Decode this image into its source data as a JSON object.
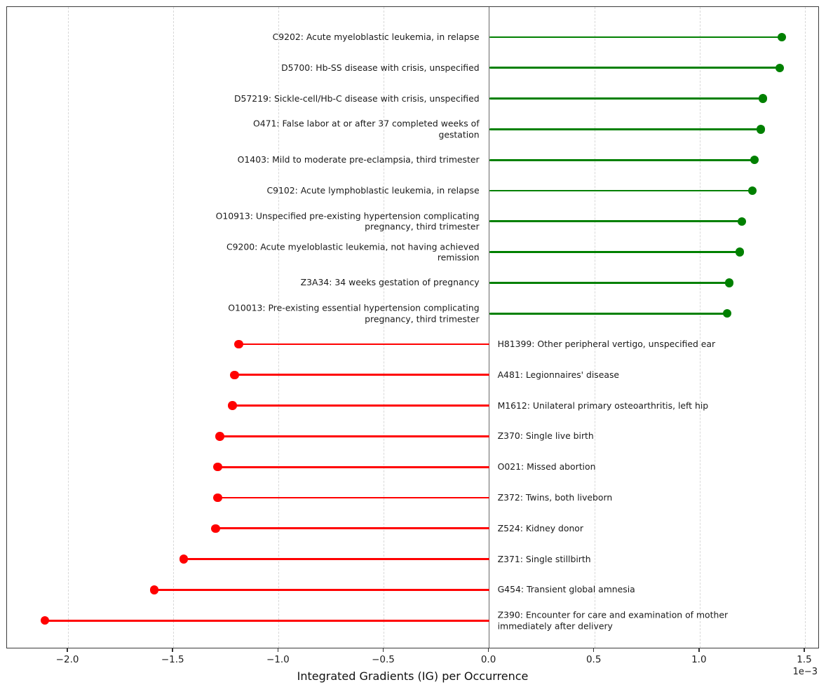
{
  "chart_data": {
    "type": "bar",
    "style": "horizontal-lollipop-stem",
    "title": "",
    "xlabel": "Integrated Gradients (IG) per Occurrence",
    "ylabel": "",
    "x_scale_factor": "1e−3",
    "values_unit": "×1e−3",
    "xlim": [
      -2.29,
      1.57
    ],
    "x_ticks": [
      -2.0,
      -1.5,
      -1.0,
      -0.5,
      0.0,
      0.5,
      1.0,
      1.5
    ],
    "x_tick_labels": [
      "−2.0",
      "−1.5",
      "−1.0",
      "−0.5",
      "0.0",
      "0.5",
      "1.0",
      "1.5"
    ],
    "grid": "vertical-dashed",
    "legend": "none",
    "positive_color": "#008000",
    "negative_color": "#ff0000",
    "zero_line_color": "#686868",
    "label_wrap_chars": 60,
    "categories": [
      "C9202: Acute myeloblastic leukemia, in relapse",
      "D5700: Hb-SS disease with crisis, unspecified",
      "D57219: Sickle-cell/Hb-C disease with crisis, unspecified",
      "O471: False labor at or after 37 completed weeks of gestation",
      "O1403: Mild to moderate pre-eclampsia, third trimester",
      "C9102: Acute lymphoblastic leukemia, in relapse",
      "O10913: Unspecified pre-existing hypertension complicating pregnancy, third trimester",
      "C9200: Acute myeloblastic leukemia, not having achieved remission",
      "Z3A34: 34 weeks gestation of pregnancy",
      "O10013: Pre-existing essential hypertension complicating pregnancy, third trimester",
      "H81399: Other peripheral vertigo, unspecified ear",
      "A481: Legionnaires' disease",
      "M1612: Unilateral primary osteoarthritis, left hip",
      "Z370: Single live birth",
      "O021: Missed abortion",
      "Z372: Twins, both liveborn",
      "Z524: Kidney donor",
      "Z371: Single stillbirth",
      "G454: Transient global amnesia",
      "Z390: Encounter for care and examination of mother immediately after delivery"
    ],
    "values": [
      1.39,
      1.38,
      1.3,
      1.29,
      1.26,
      1.25,
      1.2,
      1.19,
      1.14,
      1.13,
      -1.19,
      -1.21,
      -1.22,
      -1.28,
      -1.29,
      -1.29,
      -1.3,
      -1.45,
      -1.59,
      -2.11
    ]
  }
}
